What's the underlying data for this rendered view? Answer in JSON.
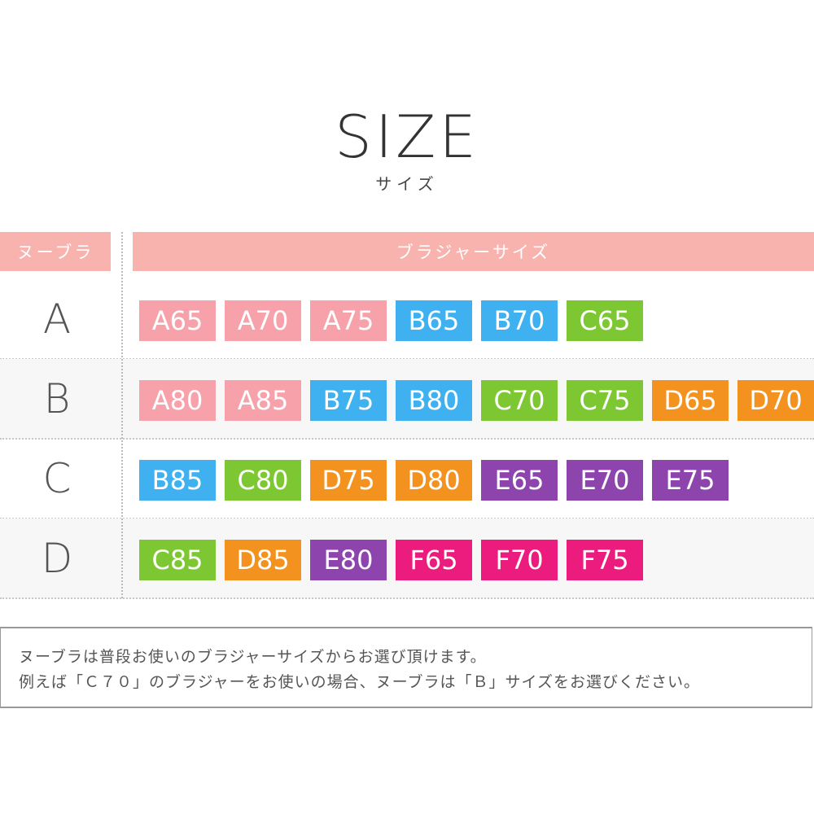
{
  "title": "SIZE",
  "subtitle": "サイズ",
  "header": {
    "left": "ヌーブラ",
    "right": "ブラジャーサイズ"
  },
  "colors": {
    "A": "#f7a1aa",
    "B": "#3fb1f0",
    "C": "#7dc832",
    "D": "#f3921e",
    "E": "#8e44ad",
    "F": "#ec1c7f",
    "header": "#f9b3ae"
  },
  "rows": [
    {
      "label": "A",
      "sizes": [
        "A65",
        "A70",
        "A75",
        "B65",
        "B70",
        "C65"
      ]
    },
    {
      "label": "B",
      "sizes": [
        "A80",
        "A85",
        "B75",
        "B80",
        "C70",
        "C75",
        "D65",
        "D70"
      ]
    },
    {
      "label": "C",
      "sizes": [
        "B85",
        "C80",
        "D75",
        "D80",
        "E65",
        "E70",
        "E75"
      ]
    },
    {
      "label": "D",
      "sizes": [
        "C85",
        "D85",
        "E80",
        "F65",
        "F70",
        "F75"
      ]
    }
  ],
  "note": {
    "line1": "ヌーブラは普段お使いのブラジャーサイズからお選び頂けます。",
    "line2": "例えば「Ｃ７０」のブラジャーをお使いの場合、ヌーブラは「Ｂ」サイズをお選びください。"
  }
}
